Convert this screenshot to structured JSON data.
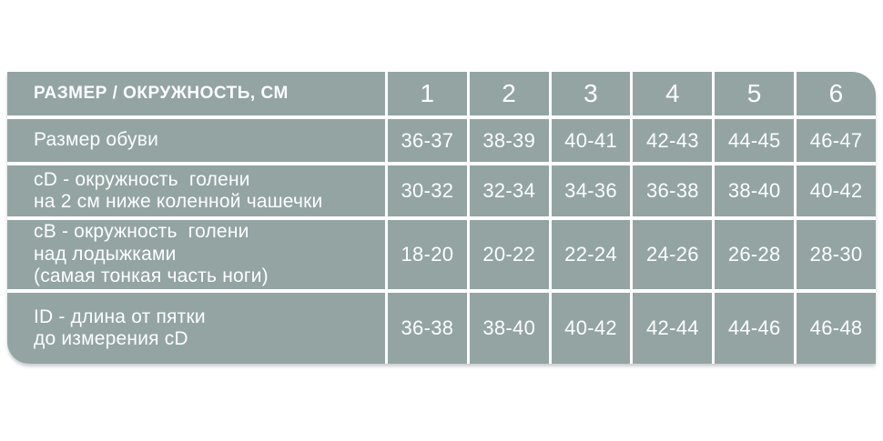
{
  "table": {
    "header": {
      "label": "РАЗМЕР / ОКРУЖНОСТЬ, СМ",
      "sizes": [
        "1",
        "2",
        "3",
        "4",
        "5",
        "6"
      ]
    },
    "rows": [
      {
        "label": "Размер обуви",
        "values": [
          "36-37",
          "38-39",
          "40-41",
          "42-43",
          "44-45",
          "46-47"
        ]
      },
      {
        "label": "cD - окружность  голени\nна 2 см ниже коленной чашечки",
        "values": [
          "30-32",
          "32-34",
          "34-36",
          "36-38",
          "38-40",
          "40-42"
        ]
      },
      {
        "label": "cB - окружность  голени\nнад лодыжками\n(самая тонкая часть ноги)",
        "values": [
          "18-20",
          "20-22",
          "22-24",
          "24-26",
          "26-28",
          "28-30"
        ]
      },
      {
        "label": "ID - длина от пятки\nдо измерения cD",
        "values": [
          "36-38",
          "38-40",
          "40-42",
          "42-44",
          "44-46",
          "46-48"
        ]
      }
    ],
    "colors": {
      "cell_bg": "#93a4a3",
      "text": "#fdfefe",
      "divider": "#ffffff"
    }
  },
  "chart_data": {
    "type": "table",
    "title": "РАЗМЕР / ОКРУЖНОСТЬ, СМ",
    "columns": [
      "РАЗМЕР / ОКРУЖНОСТЬ, СМ",
      "1",
      "2",
      "3",
      "4",
      "5",
      "6"
    ],
    "rows": [
      [
        "Размер обуви",
        "36-37",
        "38-39",
        "40-41",
        "42-43",
        "44-45",
        "46-47"
      ],
      [
        "cD - окружность голени на 2 см ниже коленной чашечки",
        "30-32",
        "32-34",
        "34-36",
        "36-38",
        "38-40",
        "40-42"
      ],
      [
        "cB - окружность голени над лодыжками (самая тонкая часть ноги)",
        "18-20",
        "20-22",
        "22-24",
        "24-26",
        "26-28",
        "28-30"
      ],
      [
        "ID - длина от пятки до измерения cD",
        "36-38",
        "38-40",
        "40-42",
        "42-44",
        "44-46",
        "46-48"
      ]
    ],
    "layout": {
      "grid": "white gaps between teal cells",
      "corner_radius": "top-right and bottom-left rounded",
      "header_text_style": "bold white"
    }
  }
}
